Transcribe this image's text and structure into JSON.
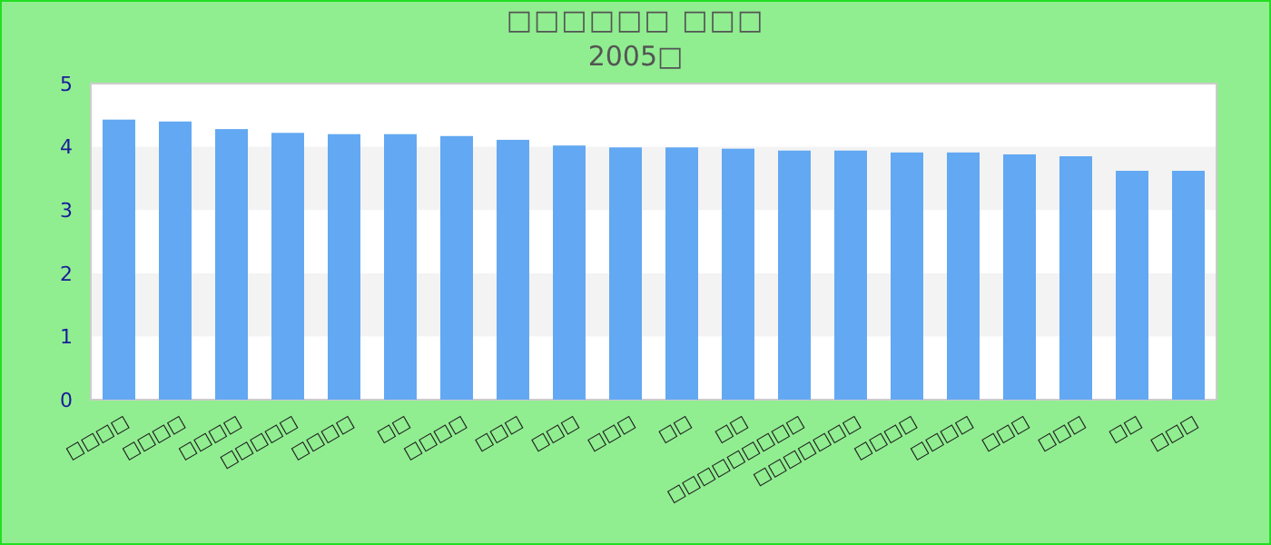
{
  "chart_data": {
    "type": "bar",
    "title": "□□□□□□ □□□",
    "subtitle": "2005□",
    "categories": [
      "□□□□",
      "□□□□",
      "□□□□",
      "□□□□□",
      "□□□□",
      "□□",
      "□□□□",
      "□□□",
      "□□□",
      "□□□",
      "□□",
      "□□",
      "□□□□□□□□□",
      "□□□□□□□",
      "□□□□",
      "□□□□",
      "□□□",
      "□□□",
      "□□",
      "□□□"
    ],
    "values": [
      4.43,
      4.4,
      4.28,
      4.22,
      4.2,
      4.2,
      4.17,
      4.11,
      4.02,
      3.99,
      3.99,
      3.97,
      3.94,
      3.94,
      3.91,
      3.91,
      3.88,
      3.85,
      3.62,
      3.62
    ],
    "color": "#62a8f2",
    "ylim": [
      0,
      5
    ],
    "yticks": [
      0,
      1,
      2,
      3,
      4,
      5
    ],
    "bands": [
      {
        "axis": "y",
        "from": 1,
        "to": 2,
        "color": "#f3f3f3"
      },
      {
        "axis": "y",
        "from": 3,
        "to": 4,
        "color": "#f3f3f3"
      }
    ]
  }
}
